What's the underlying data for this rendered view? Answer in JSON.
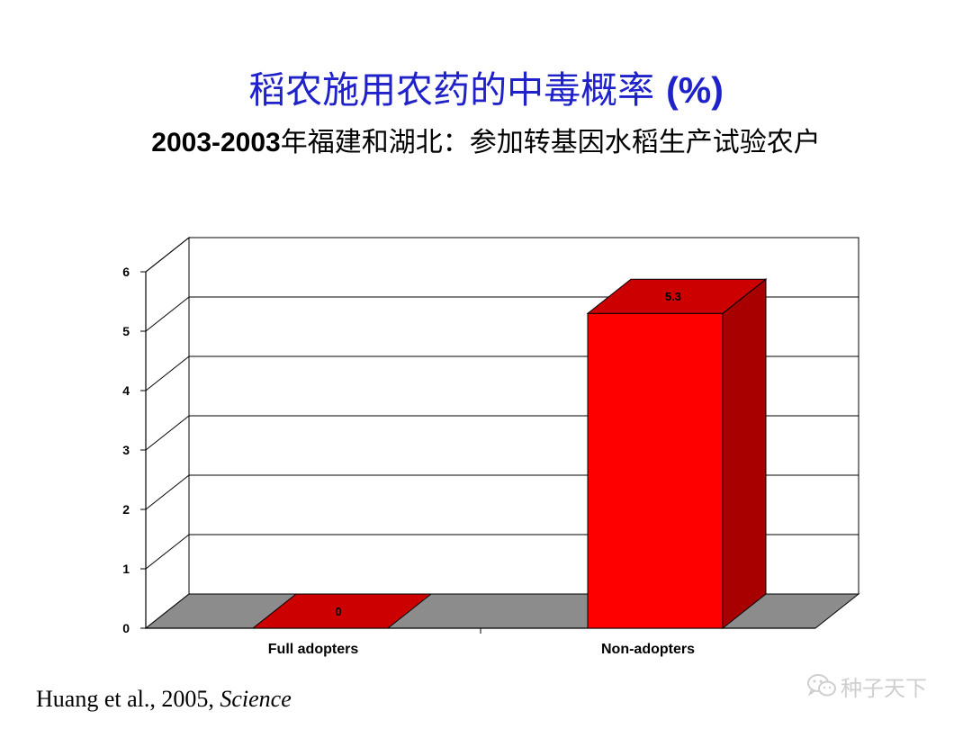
{
  "title": {
    "main": "稻农施用农药的中毒概率",
    "unit": "(%)",
    "sub_years": "2003-2003",
    "sub_text": "年福建和湖北：参加转基因水稻生产试验农户"
  },
  "chart_data": {
    "type": "bar",
    "style": "3d",
    "categories": [
      "Full adopters",
      "Non-adopters"
    ],
    "values": [
      0,
      5.3
    ],
    "data_labels": [
      "0",
      "5.3"
    ],
    "yticks": [
      "0",
      "1",
      "2",
      "3",
      "4",
      "5",
      "6"
    ],
    "ylim": [
      0,
      6
    ],
    "grid": true,
    "colors": {
      "bar_front": "#ff0000",
      "bar_top": "#cc0000",
      "bar_side": "#a80000",
      "floor": "#8c8c8c"
    }
  },
  "citation": {
    "authors": "Huang et al., 2005,",
    "journal": "Science"
  },
  "watermark": {
    "text": "种子天下",
    "icon": "wechat-icon"
  }
}
